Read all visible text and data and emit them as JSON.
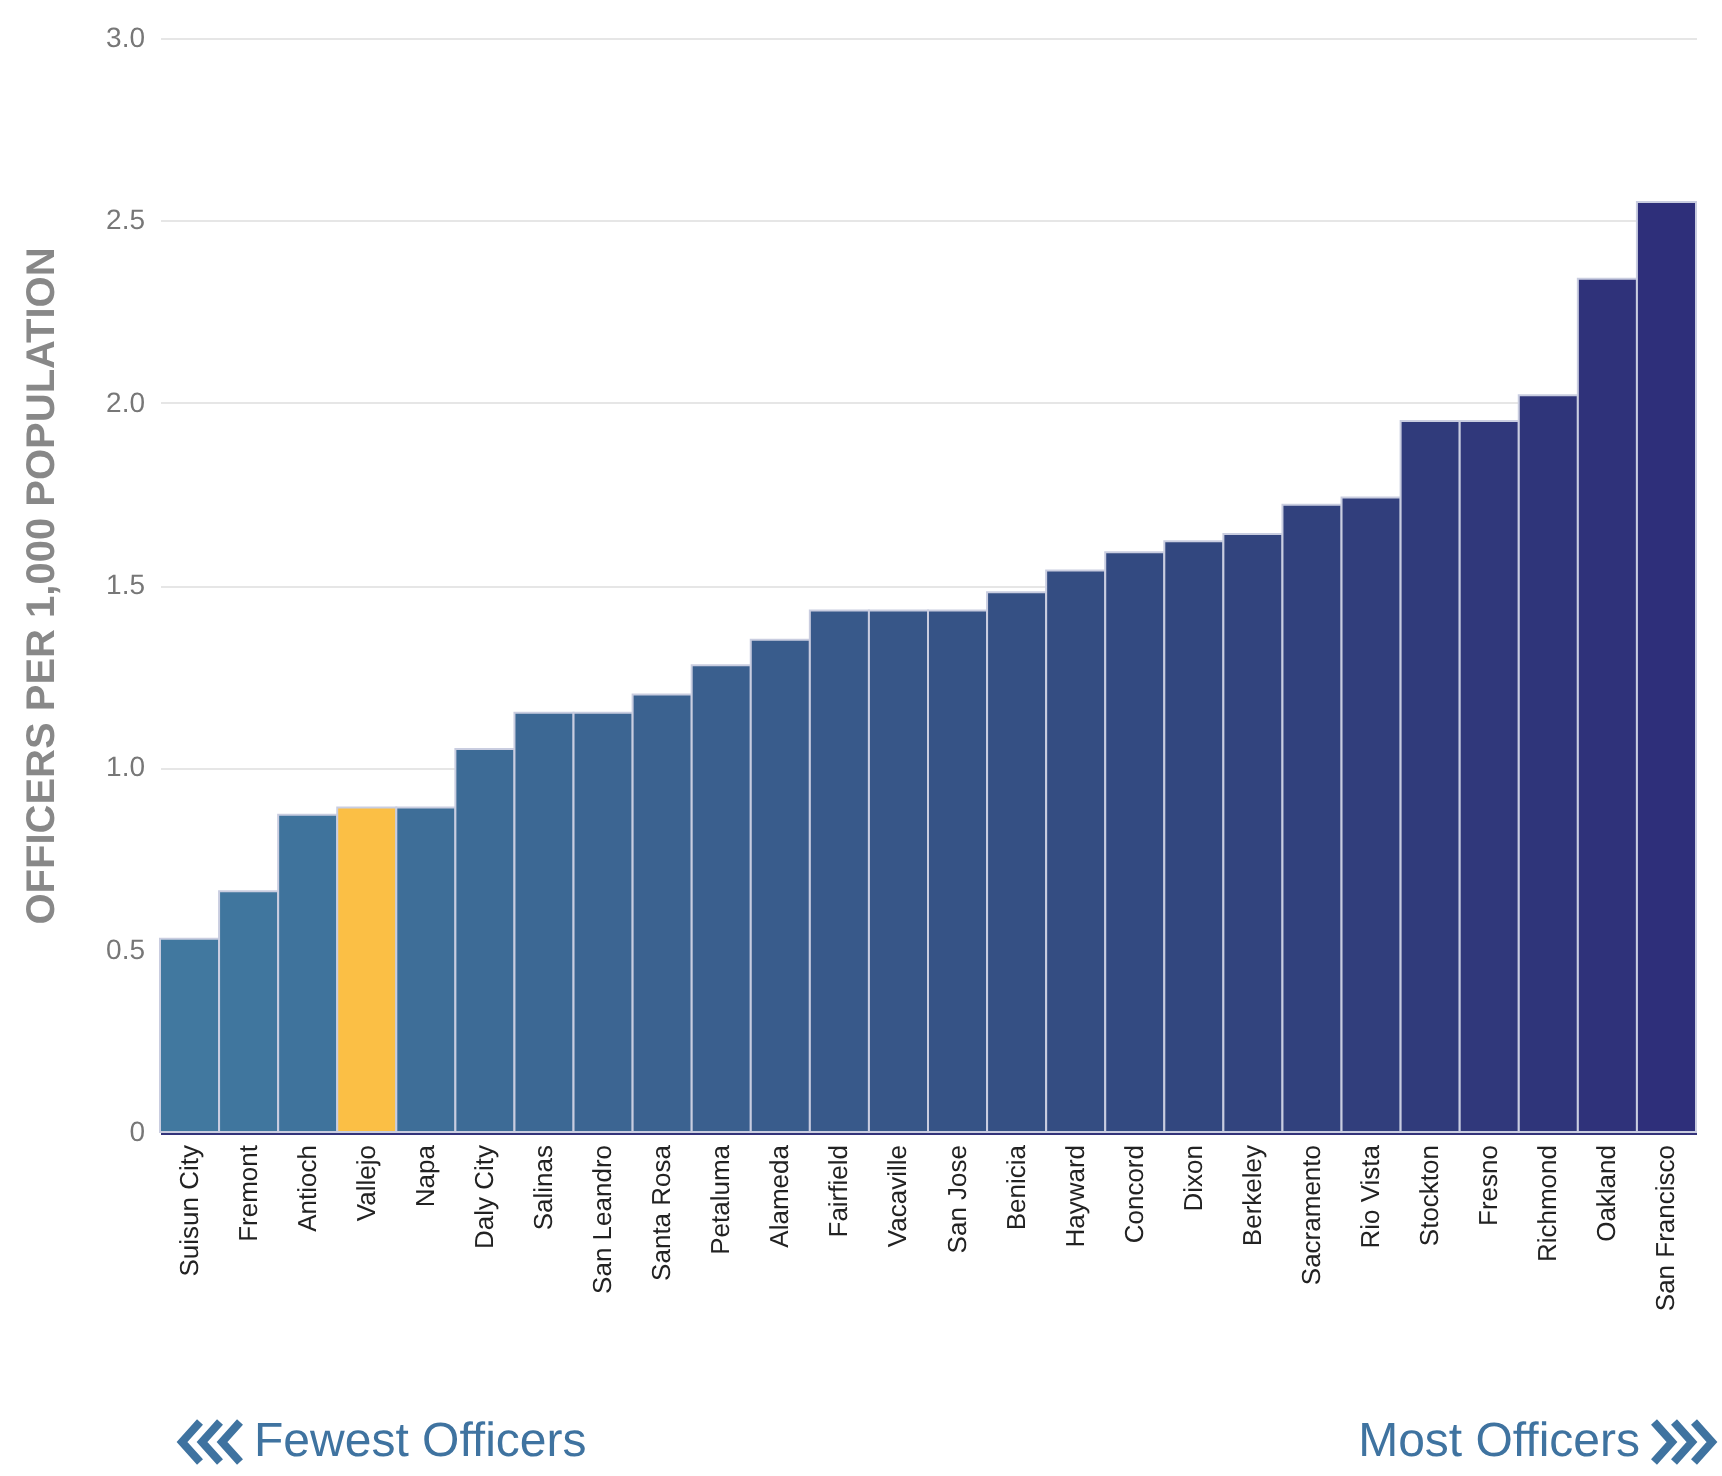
{
  "chart_data": {
    "type": "bar",
    "ylabel": "OFFICERS PER 1,000 POPULATION",
    "categories": [
      "Suisun City",
      "Fremont",
      "Antioch",
      "Vallejo",
      "Napa",
      "Daly City",
      "Salinas",
      "San Leandro",
      "Santa Rosa",
      "Petaluma",
      "Alameda",
      "Fairfield",
      "Vacaville",
      "San Jose",
      "Benicia",
      "Hayward",
      "Concord",
      "Dixon",
      "Berkeley",
      "Sacramento",
      "Rio Vista",
      "Stockton",
      "Fresno",
      "Richmond",
      "Oakland",
      "San Francisco"
    ],
    "values": [
      0.53,
      0.66,
      0.87,
      0.89,
      0.89,
      1.05,
      1.15,
      1.15,
      1.2,
      1.28,
      1.35,
      1.43,
      1.43,
      1.43,
      1.48,
      1.54,
      1.59,
      1.62,
      1.64,
      1.72,
      1.74,
      1.95,
      1.95,
      2.02,
      2.34,
      2.55
    ],
    "colors": [
      "#41789f",
      "#40769e",
      "#3f739c",
      "#fbbf45",
      "#3e6e98",
      "#3d6b96",
      "#3c6894",
      "#3c6592",
      "#3b6290",
      "#3a5f8e",
      "#395c8c",
      "#38598a",
      "#375688",
      "#365386",
      "#355084",
      "#344d82",
      "#334a81",
      "#32477f",
      "#32447e",
      "#31417d",
      "#313e7c",
      "#303b7b",
      "#30387b",
      "#2f357a",
      "#2f327a",
      "#2e2f7a"
    ],
    "ylim": [
      0,
      3
    ],
    "yticks": [
      0,
      0.5,
      {
        "value": 1,
        "label": "1.0"
      },
      1.5,
      {
        "value": 2,
        "label": "2.0"
      },
      2.5,
      {
        "value": 3,
        "label": "3.0"
      }
    ],
    "grid": "y",
    "legend": false,
    "annotations": [
      "Fewest Officers",
      "Most Officers"
    ]
  }
}
